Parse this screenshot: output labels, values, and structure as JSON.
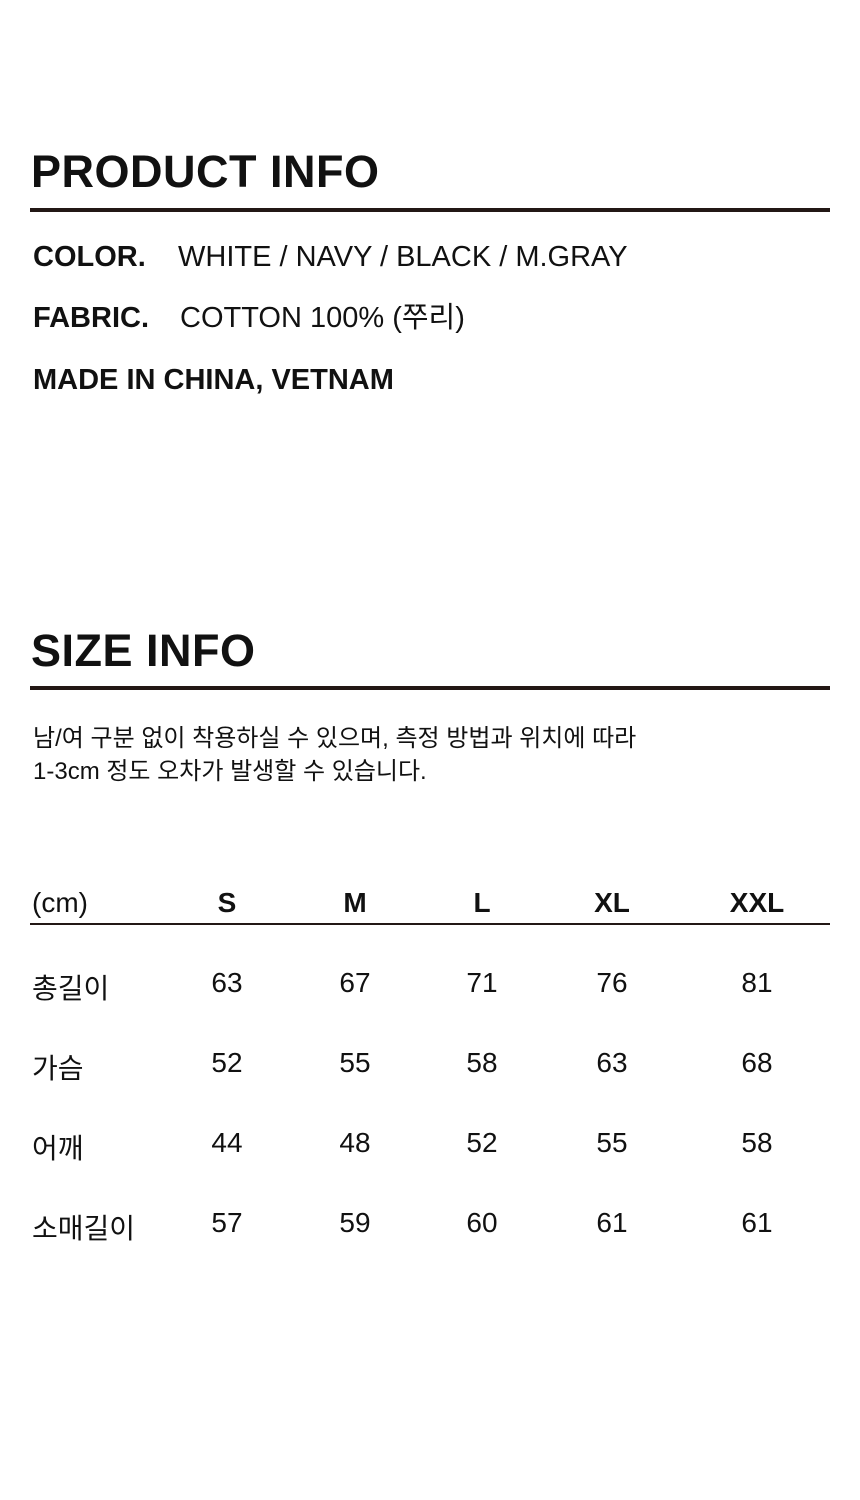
{
  "product_info": {
    "title": "PRODUCT INFO",
    "color_label": "COLOR.",
    "color_value": "WHITE / NAVY / BLACK / M.GRAY",
    "fabric_label": "FABRIC.",
    "fabric_value": "COTTON 100% (쭈리)",
    "origin": "MADE IN CHINA, VETNAM"
  },
  "size_info": {
    "title": "SIZE INFO",
    "note_line1": "남/여 구분 없이 착용하실 수 있으며, 측정 방법과 위치에 따라",
    "note_line2": "1-3cm 정도 오차가 발생할 수 있습니다.",
    "table": {
      "unit": "(cm)",
      "sizes": [
        "S",
        "M",
        "L",
        "XL",
        "XXL"
      ],
      "rows": [
        {
          "label": "총길이",
          "values": [
            "63",
            "67",
            "71",
            "76",
            "81"
          ]
        },
        {
          "label": "가슴",
          "values": [
            "52",
            "55",
            "58",
            "63",
            "68"
          ]
        },
        {
          "label": "어깨",
          "values": [
            "44",
            "48",
            "52",
            "55",
            "58"
          ]
        },
        {
          "label": "소매길이",
          "values": [
            "57",
            "59",
            "60",
            "61",
            "61"
          ]
        }
      ]
    }
  },
  "colors": {
    "text": "#111111",
    "rule": "#231815"
  }
}
